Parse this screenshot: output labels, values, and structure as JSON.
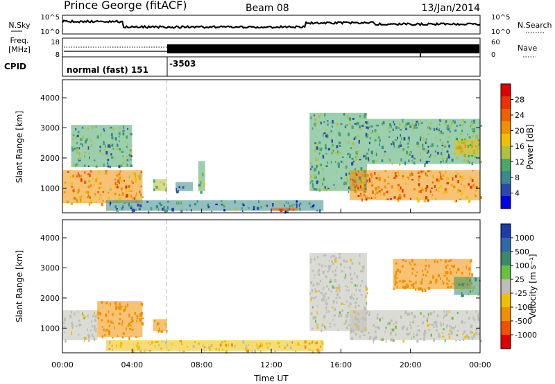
{
  "header": {
    "title": "Prince George (fitACF)",
    "beam": "Beam 08",
    "date": "13/Jan/2014"
  },
  "noise_panel": {
    "left_label": "N.Sky",
    "right_label": "N.Search",
    "ticks": [
      "10^5",
      "10^0"
    ]
  },
  "freq_panel": {
    "left_label_1": "Freq.",
    "left_label_2": "[MHz]",
    "left_ticks": [
      "18",
      "8"
    ],
    "right_label": "Nave",
    "right_ticks": [
      "60",
      "0"
    ]
  },
  "cpid_panel": {
    "label": "CPID",
    "mode1": "normal (fast) 151",
    "mode2": "-3503"
  },
  "power_panel": {
    "ylabel": "Slant Range [km]",
    "yticks": [
      "4000",
      "3000",
      "2000",
      "1000"
    ],
    "colorbar_label": "Power [dB]",
    "colorbar_ticks": [
      "28",
      "24",
      "20",
      "16",
      "12",
      "8",
      "4"
    ],
    "colors": [
      "#0000e6",
      "#2a4aa8",
      "#3a8a8a",
      "#4aa86a",
      "#b0c040",
      "#f0c000",
      "#f09000",
      "#f06000",
      "#f03000",
      "#e00000"
    ]
  },
  "velocity_panel": {
    "ylabel": "Slant Range [km]",
    "yticks": [
      "4000",
      "3000",
      "2000",
      "1000"
    ],
    "colorbar_label": "Velocity [m s⁻¹]",
    "colorbar_ticks": [
      "1000",
      "500",
      "100",
      "25",
      "-25",
      "-100",
      "-500",
      "-1000"
    ],
    "colors": [
      "#1f3ca8",
      "#2f6aa8",
      "#3a8a6a",
      "#6ac040",
      "#bebeb4",
      "#f0c000",
      "#f09000",
      "#f05000",
      "#e00000"
    ]
  },
  "xaxis": {
    "label": "Time UT",
    "ticks": [
      "00:00",
      "04:00",
      "08:00",
      "12:00",
      "16:00",
      "20:00",
      "00:00"
    ]
  },
  "chart_data": {
    "type": "heatmap",
    "title": "Prince George (fitACF)",
    "subtitle": "Beam 08  13/Jan/2014",
    "xlabel": "Time UT",
    "ylabel": "Slant Range [km]",
    "xlim_hours": [
      0,
      24
    ],
    "ylim_km": [
      180,
      4600
    ],
    "mode_change_hour": 6,
    "power_colorbar": {
      "label": "Power [dB]",
      "range": [
        0,
        32
      ],
      "ticks": [
        4,
        8,
        12,
        16,
        20,
        24,
        28
      ]
    },
    "velocity_colorbar": {
      "label": "Velocity [m s⁻¹]",
      "ticks": [
        1000,
        500,
        100,
        25,
        -25,
        -100,
        -500,
        -1000
      ]
    },
    "power_regions": [
      {
        "t0": 0.0,
        "t1": 4.6,
        "r0": 500,
        "r1": 1600,
        "level": 20
      },
      {
        "t0": 0.5,
        "t1": 4.0,
        "r0": 1700,
        "r1": 3100,
        "level": 10
      },
      {
        "t0": 5.2,
        "t1": 6.0,
        "r0": 900,
        "r1": 1300,
        "level": 14
      },
      {
        "t0": 6.5,
        "t1": 7.5,
        "r0": 900,
        "r1": 1200,
        "level": 8
      },
      {
        "t0": 7.8,
        "t1": 8.2,
        "r0": 900,
        "r1": 1900,
        "level": 12
      },
      {
        "t0": 2.5,
        "t1": 15.0,
        "r0": 250,
        "r1": 600,
        "level": 8
      },
      {
        "t0": 12.0,
        "t1": 13.5,
        "r0": 250,
        "r1": 350,
        "level": 24
      },
      {
        "t0": 14.2,
        "t1": 17.5,
        "r0": 900,
        "r1": 3500,
        "level": 10
      },
      {
        "t0": 16.5,
        "t1": 24.0,
        "r0": 600,
        "r1": 1600,
        "level": 22
      },
      {
        "t0": 17.5,
        "t1": 24.0,
        "r0": 1800,
        "r1": 3300,
        "level": 10
      },
      {
        "t0": 22.5,
        "t1": 24.0,
        "r0": 2100,
        "r1": 2600,
        "level": 18
      }
    ],
    "velocity_regions": [
      {
        "t0": 0.0,
        "t1": 2.0,
        "r0": 600,
        "r1": 1600,
        "value": 0
      },
      {
        "t0": 2.0,
        "t1": 4.6,
        "r0": 700,
        "r1": 1900,
        "value": -300
      },
      {
        "t0": 5.2,
        "t1": 6.0,
        "r0": 900,
        "r1": 1300,
        "value": -200
      },
      {
        "t0": 2.5,
        "t1": 15.0,
        "r0": 250,
        "r1": 600,
        "value": -60
      },
      {
        "t0": 14.2,
        "t1": 17.5,
        "r0": 900,
        "r1": 3500,
        "value": 0
      },
      {
        "t0": 16.5,
        "t1": 24.0,
        "r0": 600,
        "r1": 1600,
        "value": 0
      },
      {
        "t0": 19.0,
        "t1": 23.5,
        "r0": 2300,
        "r1": 3300,
        "value": -300
      },
      {
        "t0": 22.5,
        "t1": 24.0,
        "r0": 2100,
        "r1": 2700,
        "value": 100
      }
    ]
  }
}
